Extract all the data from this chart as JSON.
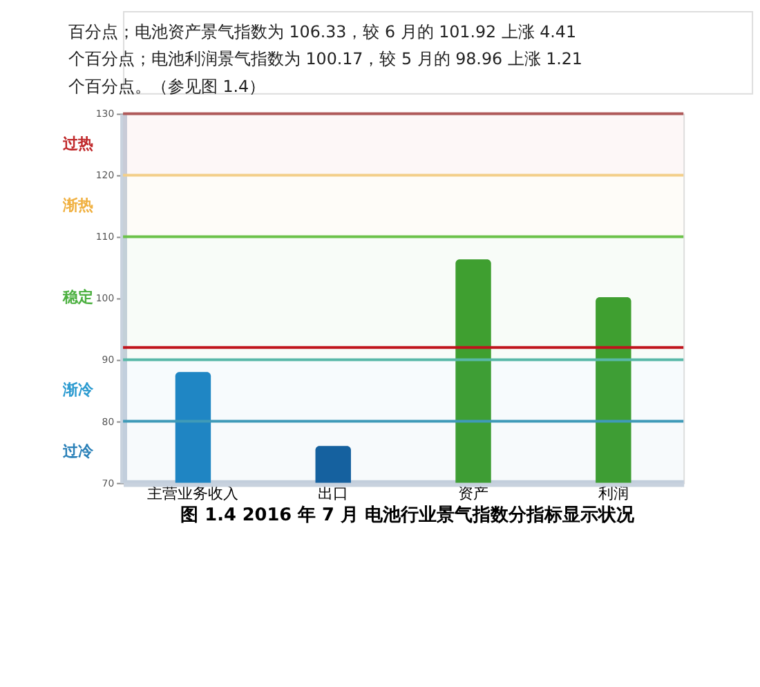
{
  "chart_data": {
    "type": "bar",
    "title": "图 1.4 2016 年 7 月 电池行业景气指数分指标显示状况",
    "annotations": [
      "百分点；电池资产景气指数为 106.33，较 6 月的 101.92 上涨 4.41",
      "个百分点；电池利润景气指数为 100.17，较 5 月的 98.96 上涨 1.21",
      "个百分点。（参见图 1.4）"
    ],
    "categories": [
      "主营业务收入",
      "出口",
      "资产",
      "利润"
    ],
    "values": [
      88,
      76,
      106.33,
      100.17
    ],
    "colors": [
      "#1f86c4",
      "#14609f",
      "#3f9f2f",
      "#3f9f2f"
    ],
    "ylim": [
      70,
      130
    ],
    "yticks": [
      70,
      80,
      90,
      100,
      110,
      120,
      130
    ],
    "grid": false,
    "ref_lines": [
      {
        "axis": "y",
        "value": 130,
        "color": "#b05a5a"
      },
      {
        "axis": "y",
        "value": 120,
        "color": "#f3cf8a"
      },
      {
        "axis": "y",
        "value": 110,
        "color": "#6cc24a"
      },
      {
        "axis": "y",
        "value": 90,
        "color": "#58b8a8"
      },
      {
        "axis": "y",
        "value": 80,
        "color": "#3f9ab8"
      },
      {
        "axis": "y",
        "value": 92,
        "color": "#c0141c"
      }
    ],
    "bands": [
      {
        "axis": "y",
        "from": 120,
        "to": 130,
        "label": "过热",
        "color": "#c0282a"
      },
      {
        "axis": "y",
        "from": 110,
        "to": 120,
        "label": "渐热",
        "color": "#f0b040"
      },
      {
        "axis": "y",
        "from": 90,
        "to": 110,
        "label": "稳定",
        "color": "#4cb040"
      },
      {
        "axis": "y",
        "from": 80,
        "to": 90,
        "label": "渐冷",
        "color": "#2a9ad0"
      },
      {
        "axis": "y",
        "from": 70,
        "to": 80,
        "label": "过冷",
        "color": "#2a80b8"
      }
    ]
  }
}
